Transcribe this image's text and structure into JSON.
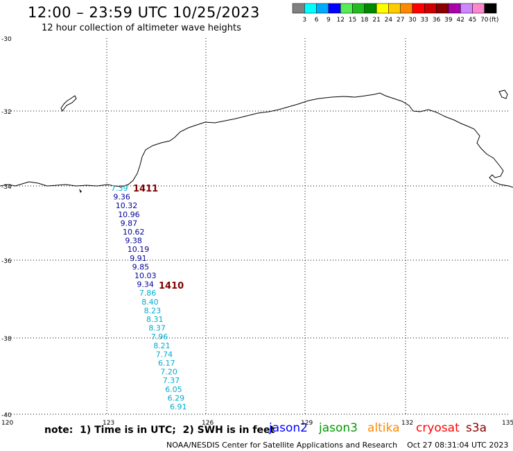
{
  "header": {
    "title": "12:00 – 23:59 UTC 10/25/2023",
    "subtitle": "12 hour collection of altimeter wave heights"
  },
  "colorbar": {
    "unit": "(ft)",
    "levels": [
      "3",
      "6",
      "9",
      "12",
      "15",
      "18",
      "21",
      "24",
      "27",
      "30",
      "33",
      "36",
      "39",
      "42",
      "45",
      "70"
    ],
    "colors": [
      "#808080",
      "#00ffff",
      "#00aaff",
      "#0000ff",
      "#55ee55",
      "#22bb22",
      "#008800",
      "#ffff00",
      "#ffcc00",
      "#ff8800",
      "#ff0000",
      "#cc0000",
      "#880000",
      "#aa00aa",
      "#cc88ff",
      "#ff88cc",
      "#000000"
    ]
  },
  "map": {
    "lat_labels": [
      "-30",
      "-32",
      "-34",
      "-36",
      "-38",
      "-40"
    ],
    "lon_labels": [
      "120",
      "123",
      "126",
      "129",
      "132",
      "135"
    ],
    "passes": [
      {
        "id": "1411",
        "color": "#800000"
      },
      {
        "id": "1410",
        "color": "#800000"
      }
    ],
    "wave_heights": [
      {
        "value": "7.39",
        "color": "#00aacc"
      },
      {
        "value": "9.36",
        "color": "#000099"
      },
      {
        "value": "10.32",
        "color": "#000099"
      },
      {
        "value": "10.96",
        "color": "#000099"
      },
      {
        "value": "9.87",
        "color": "#000099"
      },
      {
        "value": "10.62",
        "color": "#000099"
      },
      {
        "value": "9.38",
        "color": "#000099"
      },
      {
        "value": "10.19",
        "color": "#000099"
      },
      {
        "value": "9.91",
        "color": "#000099"
      },
      {
        "value": "9.85",
        "color": "#000099"
      },
      {
        "value": "10.03",
        "color": "#000099"
      },
      {
        "value": "9.34",
        "color": "#000099"
      },
      {
        "value": "7.86",
        "color": "#00aacc"
      },
      {
        "value": "8.40",
        "color": "#00aacc"
      },
      {
        "value": "8.23",
        "color": "#00aacc"
      },
      {
        "value": "8.31",
        "color": "#00aacc"
      },
      {
        "value": "8.37",
        "color": "#00aacc"
      },
      {
        "value": "7.96",
        "color": "#00aacc"
      },
      {
        "value": "8.21",
        "color": "#00aacc"
      },
      {
        "value": "7.74",
        "color": "#00aacc"
      },
      {
        "value": "6.17",
        "color": "#00aacc"
      },
      {
        "value": "7.20",
        "color": "#00aacc"
      },
      {
        "value": "7.37",
        "color": "#00aacc"
      },
      {
        "value": "6.05",
        "color": "#00aacc"
      },
      {
        "value": "6.29",
        "color": "#00aacc"
      },
      {
        "value": "6.91",
        "color": "#00aacc"
      }
    ]
  },
  "footer": {
    "note": "note:  1) Time is in UTC;  2) SWH is in feet",
    "satellites": [
      {
        "name": "jason2",
        "color": "#0000ff"
      },
      {
        "name": "jason3",
        "color": "#009900"
      },
      {
        "name": "altika",
        "color": "#ff8800"
      },
      {
        "name": "cryosat",
        "color": "#ff0000"
      },
      {
        "name": "s3a",
        "color": "#880000"
      }
    ],
    "credit": "NOAA/NESDIS Center for Satellite Applications and Research    Oct 27 08:31:04 UTC 2023"
  }
}
